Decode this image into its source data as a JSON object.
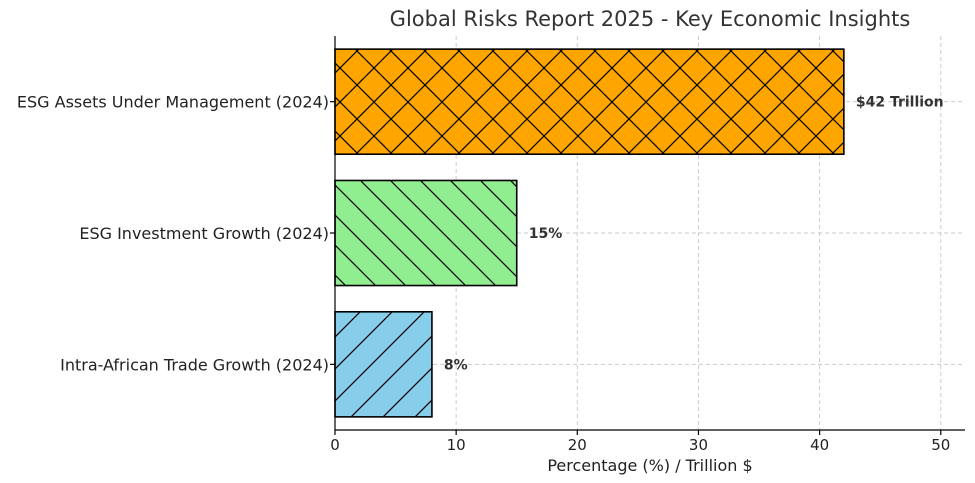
{
  "chart_data": {
    "type": "bar",
    "orientation": "horizontal",
    "title": "Global Risks Report 2025 - Key Economic Insights",
    "xlabel": "Percentage (%) / Trillion $",
    "ylabel": "",
    "xlim": [
      0,
      52
    ],
    "xticks": [
      0,
      10,
      20,
      30,
      40,
      50
    ],
    "grid": true,
    "bars": [
      {
        "category": "ESG Assets Under Management (2024)",
        "value": 42,
        "label": "$42 Trillion",
        "color": "#FFA500",
        "hatch": "crosshatch"
      },
      {
        "category": "ESG Investment Growth (2024)",
        "value": 15,
        "label": "15%",
        "color": "#90EE90",
        "hatch": "backslash"
      },
      {
        "category": "Intra-African Trade Growth (2024)",
        "value": 8,
        "label": "8%",
        "color": "#87CEEB",
        "hatch": "forwardslash"
      }
    ]
  }
}
